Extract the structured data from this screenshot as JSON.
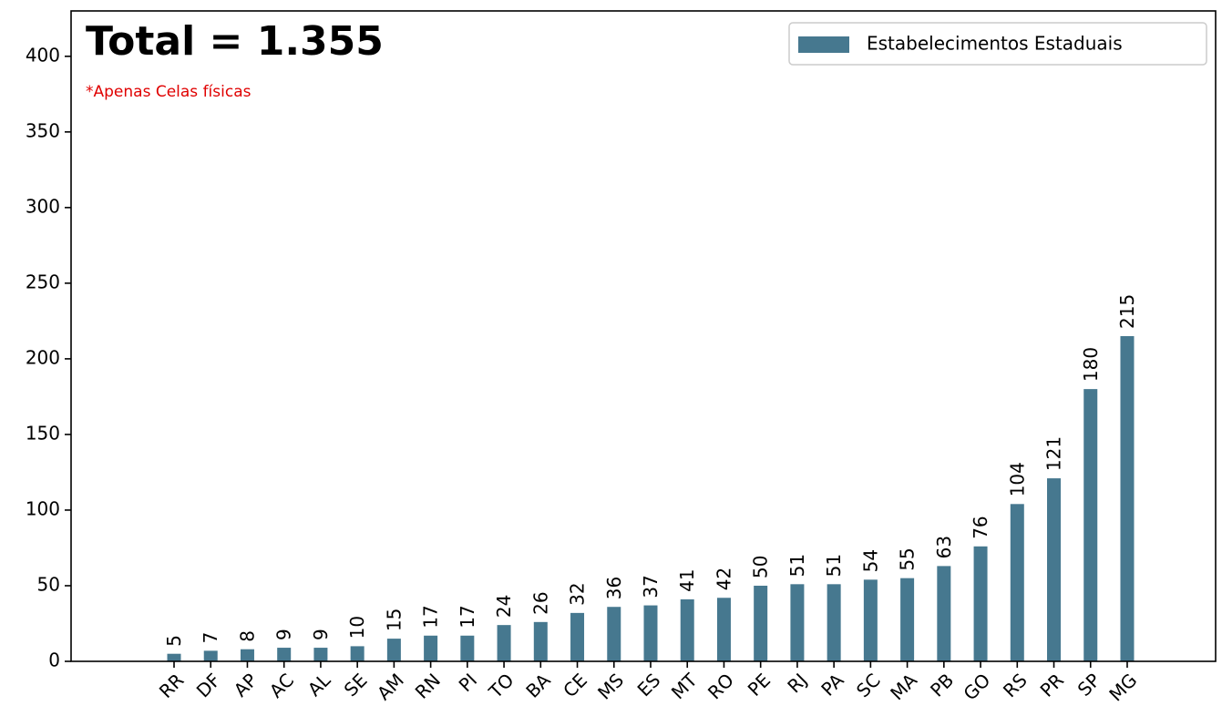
{
  "chart_data": {
    "type": "bar",
    "title": "Total = 1.355",
    "subtitle": "*Apenas Celas físicas",
    "categories": [
      "RR",
      "DF",
      "AP",
      "AC",
      "AL",
      "SE",
      "AM",
      "RN",
      "PI",
      "TO",
      "BA",
      "CE",
      "MS",
      "ES",
      "MT",
      "RO",
      "PE",
      "RJ",
      "PA",
      "SC",
      "MA",
      "PB",
      "GO",
      "RS",
      "PR",
      "SP",
      "MG"
    ],
    "series": [
      {
        "name": "Estabelecimentos Estaduais",
        "color": "#46788f",
        "values": [
          5,
          7,
          8,
          9,
          9,
          10,
          15,
          17,
          17,
          24,
          26,
          32,
          36,
          37,
          41,
          42,
          50,
          51,
          51,
          54,
          55,
          63,
          76,
          104,
          121,
          180,
          215
        ]
      }
    ],
    "ylim": [
      0,
      430
    ],
    "yticks": [
      0,
      50,
      100,
      150,
      200,
      250,
      300,
      350,
      400
    ],
    "legend": "upper right"
  }
}
